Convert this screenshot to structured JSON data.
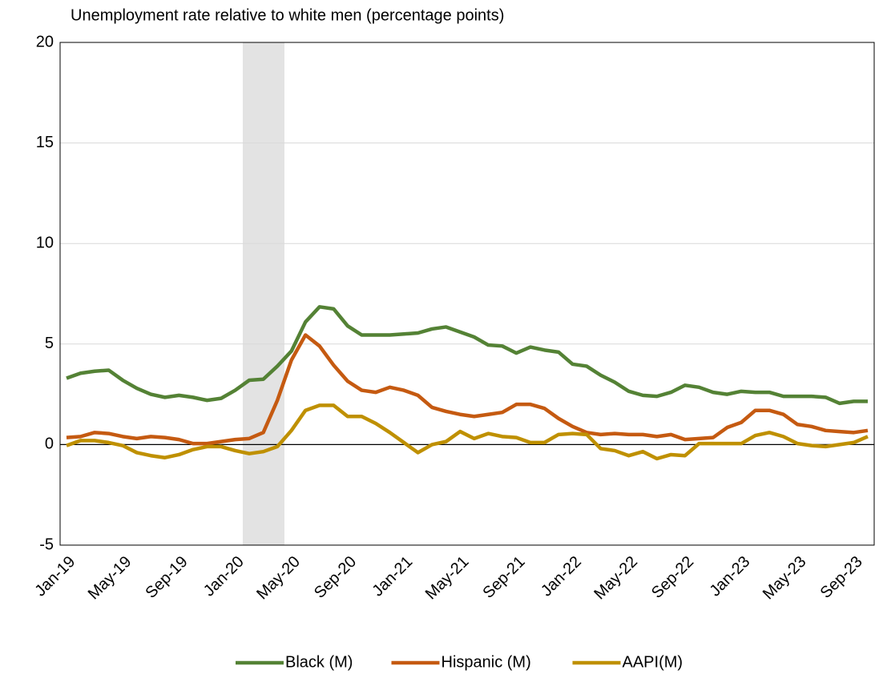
{
  "chart_data": {
    "type": "line",
    "title": "Unemployment rate relative to white men (percentage points)",
    "categories": [
      "Jan-19",
      null,
      null,
      null,
      "May-19",
      null,
      null,
      null,
      "Sep-19",
      null,
      null,
      null,
      "Jan-20",
      null,
      null,
      null,
      "May-20",
      null,
      null,
      null,
      "Sep-20",
      null,
      null,
      null,
      "Jan-21",
      null,
      null,
      null,
      "May-21",
      null,
      null,
      null,
      "Sep-21",
      null,
      null,
      null,
      "Jan-22",
      null,
      null,
      null,
      "May-22",
      null,
      null,
      null,
      "Sep-22",
      null,
      null,
      null,
      "Jan-23",
      null,
      null,
      null,
      "May-23",
      null,
      null,
      null,
      "Sep-23",
      null
    ],
    "series": [
      {
        "name": "Black (M)",
        "color": "#548235",
        "values": [
          3.3,
          3.55,
          3.65,
          3.7,
          3.2,
          2.8,
          2.5,
          2.35,
          2.45,
          2.35,
          2.2,
          2.3,
          2.7,
          3.2,
          3.25,
          3.9,
          4.65,
          6.1,
          6.85,
          6.75,
          5.9,
          5.45,
          5.45,
          5.45,
          5.5,
          5.55,
          5.75,
          5.85,
          5.6,
          5.35,
          4.95,
          4.9,
          4.55,
          4.85,
          4.7,
          4.6,
          4.0,
          3.9,
          3.45,
          3.1,
          2.65,
          2.45,
          2.4,
          2.6,
          2.95,
          2.85,
          2.6,
          2.5,
          2.65,
          2.6,
          2.6,
          2.4,
          2.4,
          2.4,
          2.35,
          2.05,
          2.15,
          2.15
        ]
      },
      {
        "name": "Hispanic (M)",
        "color": "#c55a11",
        "values": [
          0.35,
          0.4,
          0.6,
          0.55,
          0.4,
          0.3,
          0.4,
          0.35,
          0.25,
          0.05,
          0.05,
          0.15,
          0.25,
          0.3,
          0.6,
          2.2,
          4.2,
          5.45,
          4.9,
          3.95,
          3.15,
          2.7,
          2.6,
          2.85,
          2.7,
          2.45,
          1.85,
          1.65,
          1.5,
          1.4,
          1.5,
          1.6,
          2.0,
          2.0,
          1.8,
          1.3,
          0.9,
          0.6,
          0.5,
          0.55,
          0.5,
          0.5,
          0.4,
          0.5,
          0.25,
          0.3,
          0.35,
          0.85,
          1.1,
          1.7,
          1.7,
          1.5,
          1.0,
          0.9,
          0.7,
          0.65,
          0.6,
          0.7
        ]
      },
      {
        "name": "AAPI(M)",
        "color": "#bf9000",
        "values": [
          -0.05,
          0.2,
          0.2,
          0.1,
          -0.05,
          -0.4,
          -0.55,
          -0.65,
          -0.5,
          -0.25,
          -0.1,
          -0.1,
          -0.3,
          -0.45,
          -0.35,
          -0.1,
          0.7,
          1.7,
          1.95,
          1.95,
          1.4,
          1.4,
          1.05,
          0.6,
          0.1,
          -0.4,
          0.0,
          0.15,
          0.65,
          0.3,
          0.55,
          0.4,
          0.35,
          0.1,
          0.1,
          0.5,
          0.55,
          0.5,
          -0.2,
          -0.3,
          -0.55,
          -0.35,
          -0.7,
          -0.5,
          -0.55,
          0.05,
          0.05,
          0.05,
          0.05,
          0.45,
          0.6,
          0.4,
          0.05,
          -0.05,
          -0.1,
          0.0,
          0.1,
          0.4
        ]
      }
    ],
    "ylim": [
      -5,
      20
    ],
    "yticks": [
      -5,
      0,
      5,
      10,
      15,
      20
    ],
    "grid": true,
    "legend": "bottom"
  }
}
